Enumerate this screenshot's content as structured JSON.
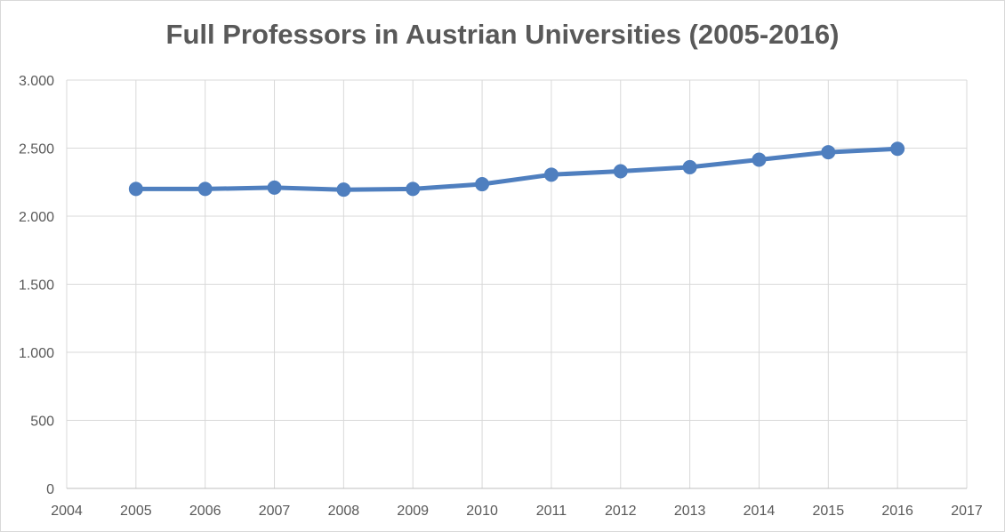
{
  "chart_data": {
    "type": "line",
    "title": "Full Professors in Austrian Universities (2005-2016)",
    "xlabel": "",
    "ylabel": "",
    "x": [
      2005,
      2006,
      2007,
      2008,
      2009,
      2010,
      2011,
      2012,
      2013,
      2014,
      2015,
      2016
    ],
    "series": [
      {
        "values": [
          2200,
          2200,
          2210,
          2195,
          2200,
          2235,
          2305,
          2330,
          2360,
          2415,
          2470,
          2495
        ],
        "color": "#4f7fbf",
        "marker": "circle"
      }
    ],
    "xlim": [
      2004,
      2017
    ],
    "ylim": [
      0,
      3000
    ],
    "x_ticks": [
      2004,
      2005,
      2006,
      2007,
      2008,
      2009,
      2010,
      2011,
      2012,
      2013,
      2014,
      2015,
      2016,
      2017
    ],
    "x_tick_labels": [
      "2004",
      "2005",
      "2006",
      "2007",
      "2008",
      "2009",
      "2010",
      "2011",
      "2012",
      "2013",
      "2014",
      "2015",
      "2016",
      "2017"
    ],
    "y_ticks": [
      0,
      500,
      1000,
      1500,
      2000,
      2500,
      3000
    ],
    "y_tick_labels": [
      "0",
      "500",
      "1.000",
      "1.500",
      "2.000",
      "2.500",
      "3.000"
    ],
    "grid": true,
    "legend": "none",
    "gridline_color": "#d9d9d9",
    "text_color": "#595959"
  }
}
